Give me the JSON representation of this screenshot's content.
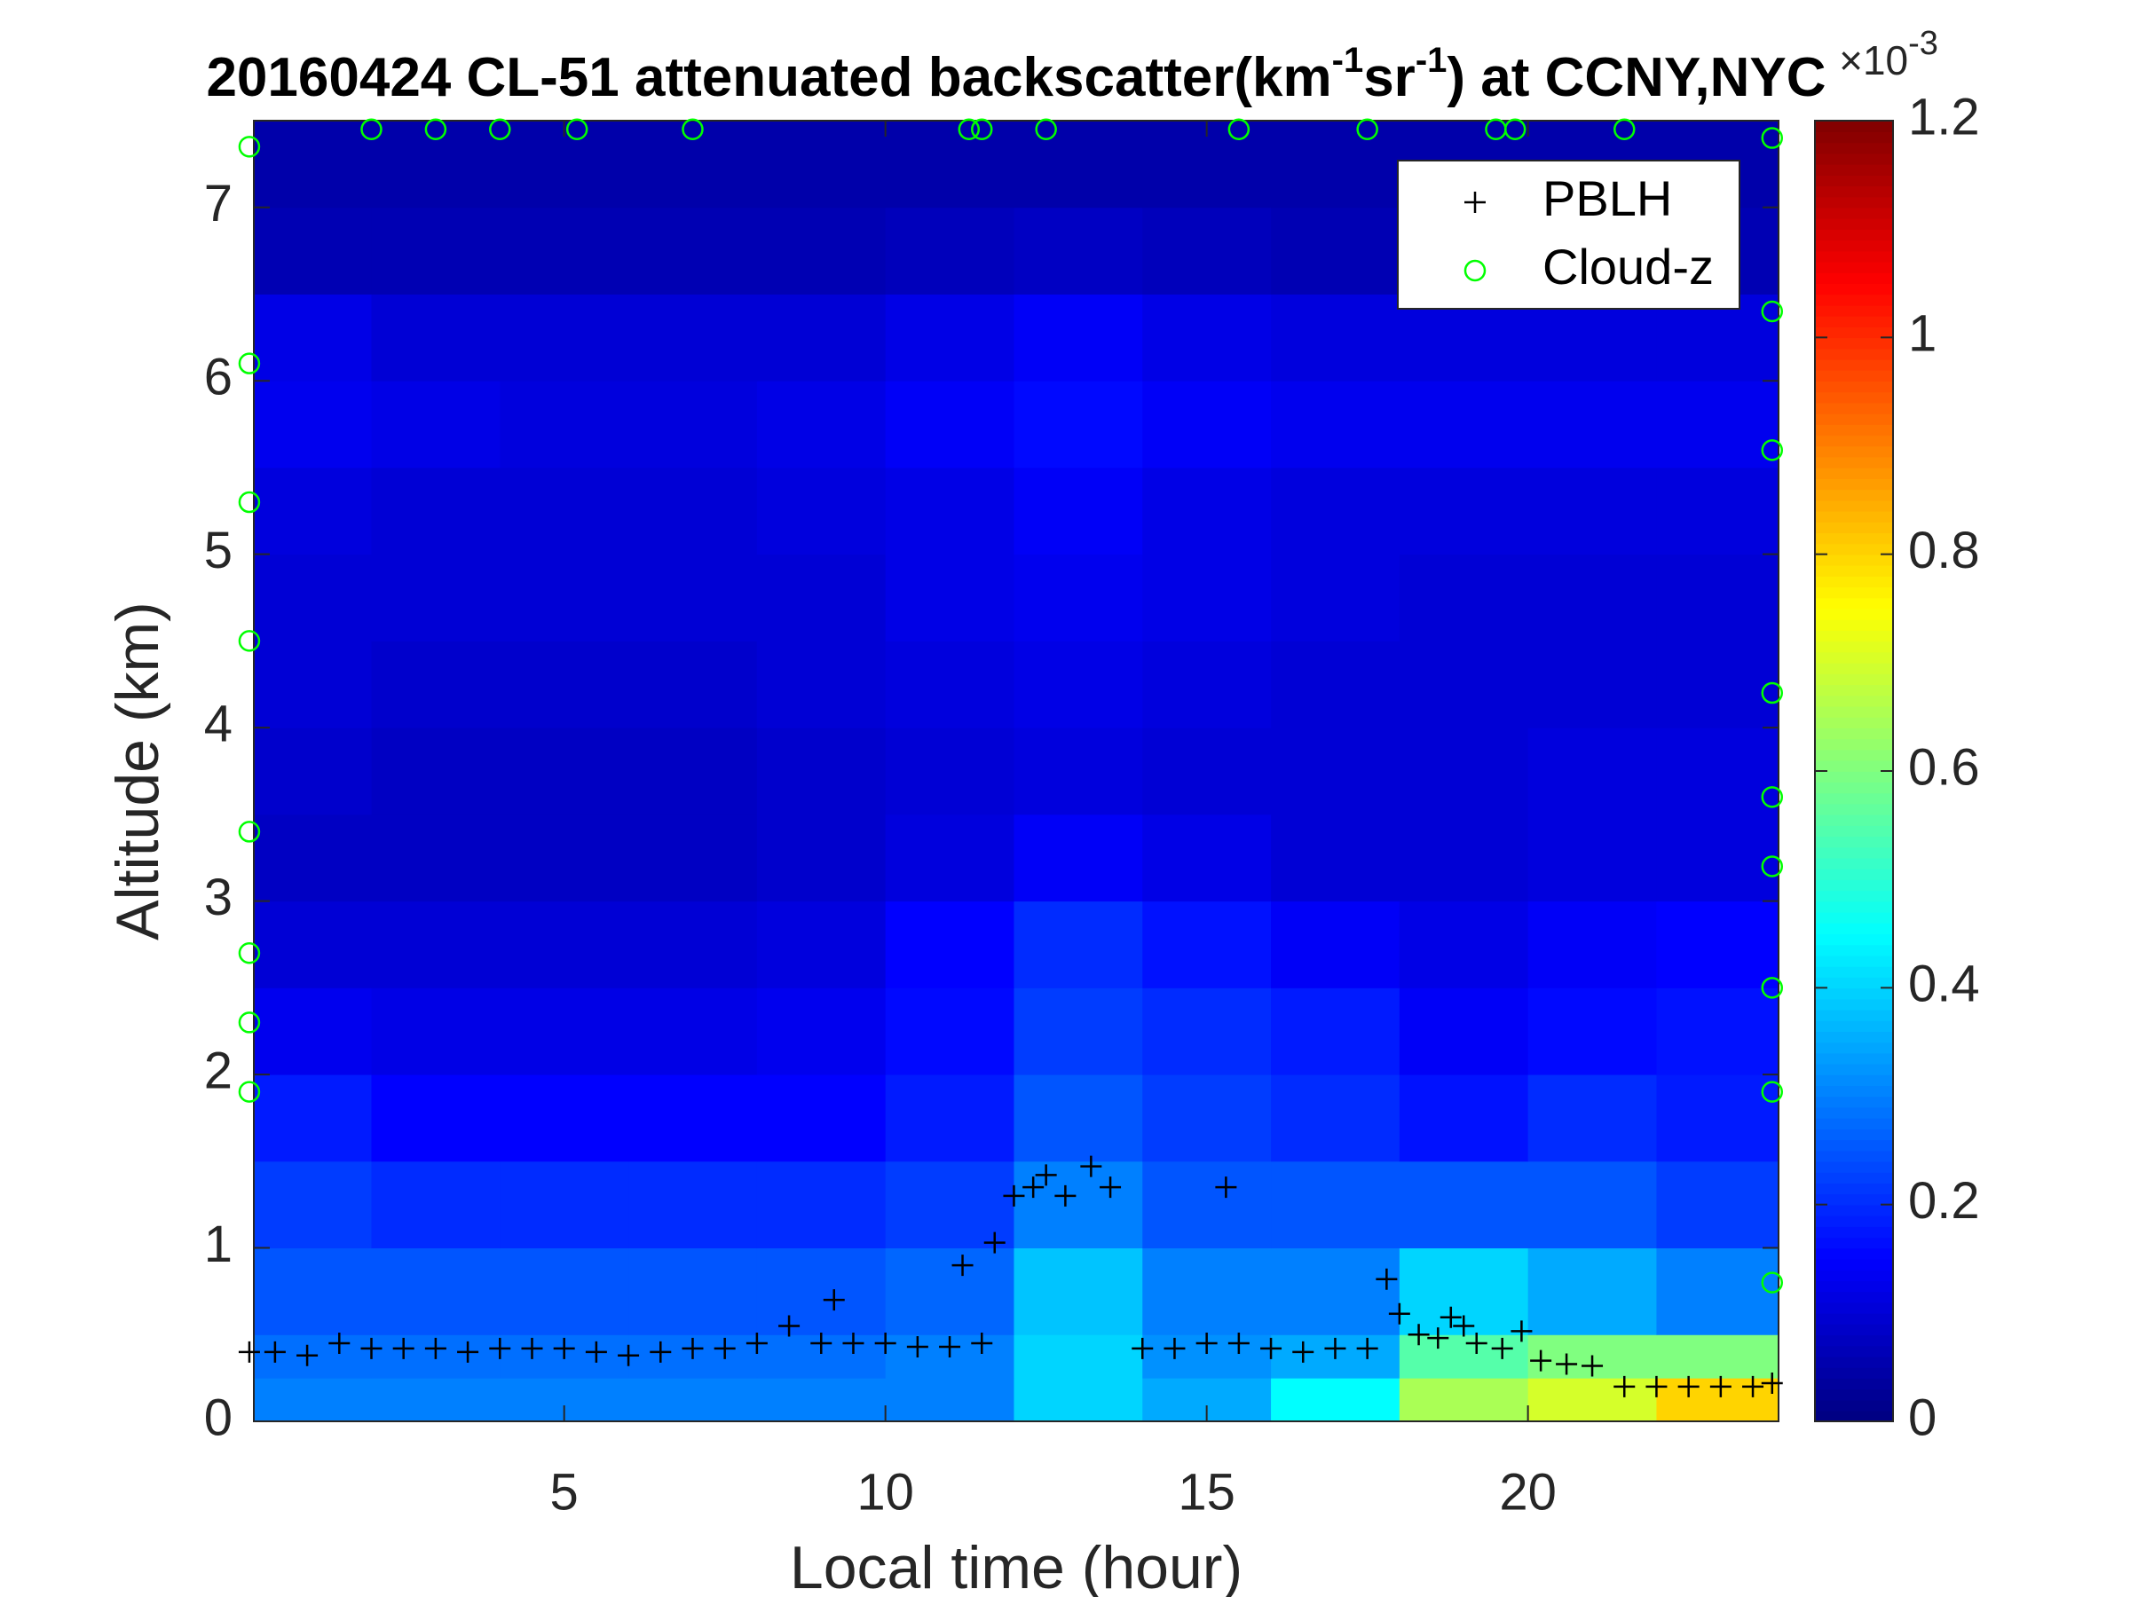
{
  "chart_data": {
    "type": "heatmap",
    "title": [
      "20160424  CL-51 attenuated backscatter(km",
      "-1",
      "sr",
      "-1",
      ") at CCNY,NYC"
    ],
    "xlabel": "Local time (hour)",
    "ylabel": "Altitude (km)",
    "xlim": [
      0.17,
      23.9
    ],
    "ylim": [
      0,
      7.5
    ],
    "xticks": [
      5,
      10,
      15,
      20
    ],
    "yticks": [
      0,
      1,
      2,
      3,
      4,
      5,
      6,
      7
    ],
    "colormap": "jet",
    "clim": [
      0,
      1.2
    ],
    "cticks": [
      0,
      0.2,
      0.4,
      0.6,
      0.8,
      1,
      1.2
    ],
    "colorbar_exponent": [
      "×10",
      "-3"
    ],
    "legend": "upper right",
    "xbins": [
      0,
      2,
      4,
      6,
      8,
      10,
      12,
      14,
      16,
      18,
      20,
      22,
      24
    ],
    "ybins": [
      0,
      0.25,
      0.5,
      1,
      1.5,
      2,
      2.5,
      3,
      3.5,
      4,
      4.5,
      5,
      5.5,
      6,
      6.5,
      7,
      7.5
    ],
    "z": [
      [
        0.3,
        0.3,
        0.3,
        0.3,
        0.3,
        0.3,
        0.4,
        0.35,
        0.45,
        0.65,
        0.7,
        0.8
      ],
      [
        0.28,
        0.28,
        0.28,
        0.28,
        0.28,
        0.3,
        0.4,
        0.32,
        0.35,
        0.55,
        0.6,
        0.6
      ],
      [
        0.25,
        0.25,
        0.25,
        0.25,
        0.25,
        0.27,
        0.38,
        0.3,
        0.3,
        0.4,
        0.35,
        0.3
      ],
      [
        0.22,
        0.2,
        0.2,
        0.2,
        0.2,
        0.22,
        0.3,
        0.25,
        0.25,
        0.25,
        0.25,
        0.22
      ],
      [
        0.18,
        0.15,
        0.15,
        0.15,
        0.15,
        0.18,
        0.25,
        0.22,
        0.2,
        0.17,
        0.2,
        0.18
      ],
      [
        0.13,
        0.12,
        0.12,
        0.12,
        0.13,
        0.16,
        0.22,
        0.2,
        0.18,
        0.14,
        0.16,
        0.17
      ],
      [
        0.1,
        0.1,
        0.1,
        0.1,
        0.11,
        0.15,
        0.2,
        0.17,
        0.14,
        0.12,
        0.14,
        0.15
      ],
      [
        0.08,
        0.08,
        0.08,
        0.08,
        0.09,
        0.11,
        0.14,
        0.12,
        0.1,
        0.1,
        0.11,
        0.11
      ],
      [
        0.09,
        0.08,
        0.08,
        0.08,
        0.09,
        0.1,
        0.11,
        0.1,
        0.1,
        0.1,
        0.11,
        0.11
      ],
      [
        0.1,
        0.09,
        0.09,
        0.09,
        0.1,
        0.11,
        0.12,
        0.11,
        0.1,
        0.1,
        0.1,
        0.1
      ],
      [
        0.1,
        0.1,
        0.1,
        0.1,
        0.1,
        0.12,
        0.13,
        0.12,
        0.11,
        0.1,
        0.1,
        0.1
      ],
      [
        0.11,
        0.1,
        0.1,
        0.1,
        0.11,
        0.12,
        0.14,
        0.12,
        0.11,
        0.11,
        0.11,
        0.11
      ],
      [
        0.13,
        0.12,
        0.11,
        0.11,
        0.12,
        0.14,
        0.16,
        0.14,
        0.13,
        0.13,
        0.13,
        0.13
      ],
      [
        0.12,
        0.1,
        0.1,
        0.1,
        0.1,
        0.12,
        0.14,
        0.12,
        0.11,
        0.11,
        0.11,
        0.11
      ],
      [
        0.06,
        0.06,
        0.06,
        0.06,
        0.06,
        0.07,
        0.08,
        0.07,
        0.06,
        0.06,
        0.06,
        0.06
      ],
      [
        0.05,
        0.05,
        0.05,
        0.05,
        0.05,
        0.05,
        0.05,
        0.05,
        0.05,
        0.05,
        0.05,
        0.05
      ]
    ],
    "series": [
      {
        "name": "PBLH",
        "marker": "+",
        "color": "#000000",
        "x": [
          0.1,
          0.5,
          1.0,
          1.5,
          2,
          2.5,
          3,
          3.5,
          4,
          4.5,
          5,
          5.5,
          6,
          6.5,
          7,
          7.5,
          8,
          8.5,
          9,
          9.2,
          9.5,
          10,
          10.5,
          11,
          11.2,
          11.5,
          11.7,
          12,
          12.3,
          12.5,
          12.8,
          13.2,
          13.5,
          14,
          14.5,
          15,
          15.3,
          15.5,
          16,
          16.5,
          17,
          17.5,
          17.8,
          18,
          18.3,
          18.6,
          18.8,
          19,
          19.2,
          19.6,
          19.9,
          20.2,
          20.6,
          21,
          21.5,
          22,
          22.5,
          23,
          23.5,
          23.8
        ],
        "y": [
          0.4,
          0.4,
          0.38,
          0.45,
          0.42,
          0.42,
          0.42,
          0.4,
          0.42,
          0.42,
          0.42,
          0.4,
          0.38,
          0.4,
          0.42,
          0.42,
          0.45,
          0.55,
          0.45,
          0.7,
          0.45,
          0.45,
          0.43,
          0.43,
          0.9,
          0.45,
          1.03,
          1.3,
          1.35,
          1.42,
          1.3,
          1.47,
          1.35,
          0.42,
          0.42,
          0.45,
          1.35,
          0.45,
          0.42,
          0.4,
          0.42,
          0.42,
          0.82,
          0.62,
          0.5,
          0.48,
          0.6,
          0.55,
          0.45,
          0.42,
          0.52,
          0.35,
          0.33,
          0.32,
          0.2,
          0.2,
          0.2,
          0.2,
          0.2,
          0.22
        ]
      },
      {
        "name": "Cloud-z",
        "marker": "o",
        "color": "#00ff00",
        "x": [
          0.1,
          0.1,
          0.1,
          0.1,
          0.1,
          0.1,
          0.1,
          0.1,
          2,
          3,
          4,
          5.2,
          7,
          11.3,
          11.5,
          12.5,
          15.5,
          17.5,
          19.5,
          19.8,
          21.5,
          23.8,
          23.8,
          23.8,
          23.8,
          23.8,
          23.8,
          23.8,
          23.8,
          23.8
        ],
        "y": [
          7.35,
          6.1,
          5.3,
          4.5,
          3.4,
          2.7,
          2.3,
          1.9,
          7.45,
          7.45,
          7.45,
          7.45,
          7.45,
          7.45,
          7.45,
          7.45,
          7.45,
          7.45,
          7.45,
          7.45,
          7.45,
          7.4,
          6.4,
          5.6,
          4.2,
          3.6,
          3.2,
          2.5,
          1.9,
          0.8
        ]
      }
    ]
  }
}
